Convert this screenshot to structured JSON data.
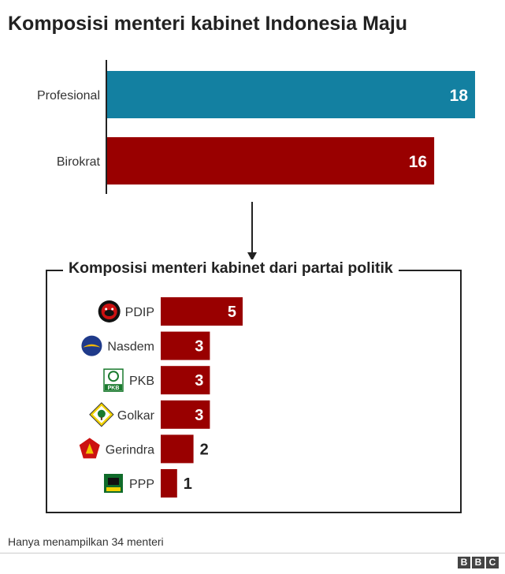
{
  "title": "Komposisi menteri kabinet Indonesia Maju",
  "chart_data": [
    {
      "type": "bar",
      "orientation": "horizontal",
      "categories": [
        "Profesional",
        "Birokrat"
      ],
      "values": [
        18,
        16
      ],
      "value_labels": [
        "18",
        "16"
      ],
      "colors": [
        "#1380a1",
        "#990000"
      ]
    },
    {
      "type": "bar",
      "orientation": "horizontal",
      "title": "Komposisi menteri kabinet dari partai politik",
      "categories": [
        "PDIP",
        "Nasdem",
        "PKB",
        "Golkar",
        "Gerindra",
        "PPP"
      ],
      "values": [
        5,
        3,
        3,
        3,
        2,
        1
      ],
      "value_labels": [
        "5",
        "3",
        "3",
        "3",
        "2",
        "1"
      ],
      "icons": [
        "pdip-logo-icon",
        "nasdem-logo-icon",
        "pkb-logo-icon",
        "golkar-logo-icon",
        "gerindra-logo-icon",
        "ppp-logo-icon"
      ],
      "bar_color": "#990000"
    }
  ],
  "footnote": "Hanya menampilkan 34 menteri",
  "source": {
    "logo_letters": [
      "B",
      "B",
      "C"
    ]
  }
}
